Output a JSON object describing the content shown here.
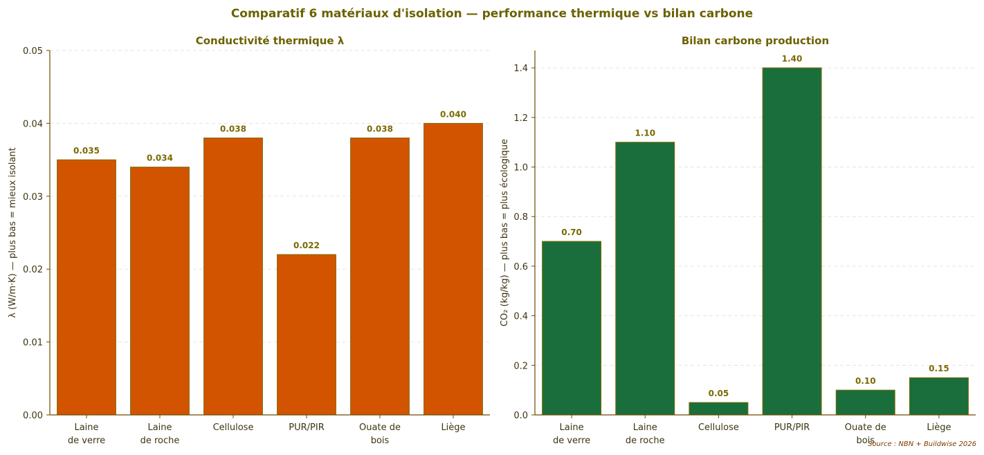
{
  "title": "Comparatif 6 matériaux d'isolation — performance thermique vs bilan carbone",
  "source": "Source : NBN + Buildwise 2026",
  "colors": {
    "title": "#6b6200",
    "axis": "#6b4a00",
    "grid": "#e3e3e3",
    "bar_edge": "#7a6a00",
    "value_label": "#7a6a00",
    "source": "#7a3a00"
  },
  "chart_data": [
    {
      "type": "bar",
      "title": "Conductivité thermique λ",
      "xlabel": "",
      "ylabel": "λ (W/m·K) — plus bas = mieux isolant",
      "categories": [
        [
          "Laine",
          "de verre"
        ],
        [
          "Laine",
          "de roche"
        ],
        [
          "Cellulose"
        ],
        [
          "PUR/PIR"
        ],
        [
          "Ouate de",
          "bois"
        ],
        [
          "Liège"
        ]
      ],
      "values": [
        0.035,
        0.034,
        0.038,
        0.022,
        0.038,
        0.04
      ],
      "value_labels": [
        "0.035",
        "0.034",
        "0.038",
        "0.022",
        "0.038",
        "0.040"
      ],
      "yticks": [
        0.0,
        0.01,
        0.02,
        0.03,
        0.04,
        0.05
      ],
      "ytick_labels": [
        "0.00",
        "0.01",
        "0.02",
        "0.03",
        "0.04",
        "0.05"
      ],
      "ylim": [
        0,
        0.05
      ],
      "grid": true,
      "color": "#d35400"
    },
    {
      "type": "bar",
      "title": "Bilan carbone production",
      "xlabel": "",
      "ylabel": "CO₂ (kg/kg) — plus bas = plus écologique",
      "categories": [
        [
          "Laine",
          "de verre"
        ],
        [
          "Laine",
          "de roche"
        ],
        [
          "Cellulose"
        ],
        [
          "PUR/PIR"
        ],
        [
          "Ouate de",
          "bois"
        ],
        [
          "Liège"
        ]
      ],
      "values": [
        0.7,
        1.1,
        0.05,
        1.4,
        0.1,
        0.15
      ],
      "value_labels": [
        "0.70",
        "1.10",
        "0.05",
        "1.40",
        "0.10",
        "0.15"
      ],
      "yticks": [
        0.0,
        0.2,
        0.4,
        0.6,
        0.8,
        1.0,
        1.2,
        1.4
      ],
      "ytick_labels": [
        "0.0",
        "0.2",
        "0.4",
        "0.6",
        "0.8",
        "1.0",
        "1.2",
        "1.4"
      ],
      "ylim": [
        0,
        1.47
      ],
      "grid": true,
      "color": "#1a6e3c"
    }
  ]
}
